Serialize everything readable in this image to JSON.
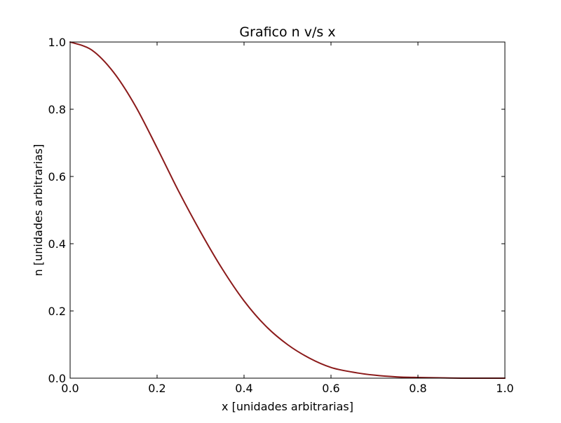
{
  "chart_data": {
    "type": "line",
    "title": "Grafico n v/s x",
    "xlabel": "x [unidades arbitrarias]",
    "ylabel": "n [unidades arbitrarias]",
    "xlim": [
      0.0,
      1.0
    ],
    "ylim": [
      0.0,
      1.0
    ],
    "x_ticks": [
      0.0,
      0.2,
      0.4,
      0.6,
      0.8,
      1.0
    ],
    "x_tick_labels": [
      "0.0",
      "0.2",
      "0.4",
      "0.6",
      "0.8",
      "1.0"
    ],
    "y_ticks": [
      0.0,
      0.2,
      0.4,
      0.6,
      0.8,
      1.0
    ],
    "y_tick_labels": [
      "0.0",
      "0.2",
      "0.4",
      "0.6",
      "0.8",
      "1.0"
    ],
    "grid": false,
    "series": [
      {
        "color": "#8b1a1a",
        "x": [
          0.0,
          0.05,
          0.1,
          0.15,
          0.2,
          0.25,
          0.3,
          0.35,
          0.4,
          0.45,
          0.5,
          0.55,
          0.6,
          0.65,
          0.7,
          0.75,
          0.8,
          0.85,
          0.9,
          0.95,
          1.0
        ],
        "y": [
          1.0,
          0.976,
          0.91,
          0.81,
          0.685,
          0.555,
          0.435,
          0.325,
          0.23,
          0.155,
          0.1,
          0.06,
          0.032,
          0.018,
          0.009,
          0.004,
          0.002,
          0.001,
          0.0,
          0.0,
          0.0
        ]
      }
    ]
  }
}
